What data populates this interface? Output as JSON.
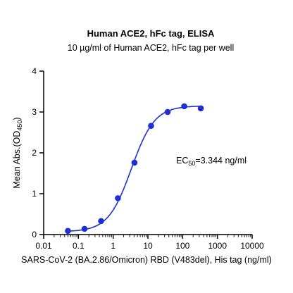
{
  "chart_data": {
    "type": "scatter",
    "title": "Human ACE2, hFc tag, ELISA",
    "subtitle": "10 µg/ml of Human ACE2, hFc tag per well",
    "xlabel": "SARS-CoV-2 (BA.2.86/Omicron) RBD (V483del), His tag (ng/ml)",
    "ylabel": {
      "prefix": "Mean Abs.(OD",
      "sub": "450",
      "suffix": ")"
    },
    "x_scale": "log",
    "xlim": [
      0.01,
      10000
    ],
    "ylim": [
      0,
      4
    ],
    "x_ticks": [
      0.01,
      0.1,
      1,
      10,
      100,
      1000,
      10000
    ],
    "x_tick_labels": [
      "0.01",
      "0.1",
      "1",
      "10",
      "100",
      "1000",
      "10000"
    ],
    "y_ticks": [
      0,
      1,
      2,
      3,
      4
    ],
    "y_tick_labels": [
      "0",
      "1",
      "2",
      "3",
      "4"
    ],
    "grid": false,
    "series": [
      {
        "color": "#1f2fd6",
        "x": [
          0.05,
          0.15,
          0.45,
          1.37,
          4.1,
          12.3,
          37,
          111,
          333
        ],
        "y": [
          0.09,
          0.14,
          0.33,
          0.89,
          1.76,
          2.66,
          3.0,
          3.14,
          3.09
        ],
        "fit": {
          "model": "4PL",
          "bottom": 0.07,
          "top": 3.15,
          "ec50": 3.344,
          "hill": 1.3
        }
      }
    ],
    "annotation": {
      "prefix": "EC",
      "sub": "50",
      "suffix": "=3.344 ng/ml"
    }
  }
}
